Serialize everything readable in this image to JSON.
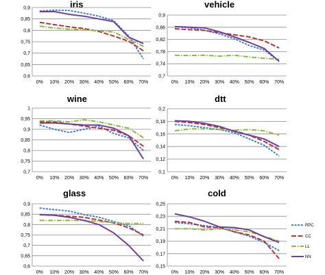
{
  "chart_data": [
    {
      "type": "line",
      "title": "iris",
      "categories": [
        "0%",
        "10%",
        "20%",
        "30%",
        "40%",
        "50%",
        "60%",
        "70%"
      ],
      "yticks": [
        "0,6",
        "0,65",
        "0,7",
        "0,75",
        "0,8",
        "0,85",
        "0,9"
      ],
      "ylim": [
        0.6,
        0.9
      ],
      "grid": true,
      "series": [
        {
          "name": "RPC",
          "values": [
            0.885,
            0.888,
            0.887,
            0.875,
            0.862,
            0.842,
            0.775,
            0.675
          ]
        },
        {
          "name": "CC",
          "values": [
            0.835,
            0.825,
            0.815,
            0.808,
            0.795,
            0.775,
            0.752,
            0.71
          ]
        },
        {
          "name": "LL",
          "values": [
            0.818,
            0.81,
            0.805,
            0.803,
            0.797,
            0.793,
            0.76,
            0.73
          ]
        },
        {
          "name": "NN",
          "values": [
            0.882,
            0.882,
            0.87,
            0.862,
            0.85,
            0.838,
            0.77,
            0.742
          ]
        }
      ]
    },
    {
      "type": "line",
      "title": "vehicle",
      "categories": [
        "0%",
        "10%",
        "20%",
        "30%",
        "40%",
        "50%",
        "60%",
        "70%"
      ],
      "yticks": [
        "0,7",
        "0,74",
        "0,78",
        "0,82",
        "0,86",
        "0,9"
      ],
      "ylim": [
        0.7,
        0.9
      ],
      "grid": true,
      "series": [
        {
          "name": "RPC",
          "values": [
            0.862,
            0.858,
            0.85,
            0.838,
            0.822,
            0.8,
            0.785,
            0.748
          ]
        },
        {
          "name": "CC",
          "values": [
            0.855,
            0.852,
            0.85,
            0.842,
            0.835,
            0.828,
            0.815,
            0.792
          ]
        },
        {
          "name": "LL",
          "values": [
            0.768,
            0.767,
            0.768,
            0.765,
            0.768,
            0.762,
            0.758,
            0.755
          ]
        },
        {
          "name": "NN",
          "values": [
            0.862,
            0.86,
            0.858,
            0.845,
            0.828,
            0.81,
            0.79,
            0.748
          ]
        }
      ]
    },
    {
      "type": "line",
      "title": "wine",
      "categories": [
        "0%",
        "10%",
        "20%",
        "30%",
        "40%",
        "50%",
        "60%",
        "70%"
      ],
      "yticks": [
        "0,7",
        "0,75",
        "0,8",
        "0,85",
        "0,9",
        "0,95",
        "1"
      ],
      "ylim": [
        0.7,
        1.0
      ],
      "grid": true,
      "series": [
        {
          "name": "RPC",
          "values": [
            0.92,
            0.9,
            0.885,
            0.9,
            0.915,
            0.88,
            0.86,
            0.8
          ]
        },
        {
          "name": "CC",
          "values": [
            0.935,
            0.935,
            0.925,
            0.915,
            0.905,
            0.895,
            0.87,
            0.82
          ]
        },
        {
          "name": "LL",
          "values": [
            0.94,
            0.94,
            0.935,
            0.945,
            0.935,
            0.92,
            0.905,
            0.86
          ]
        },
        {
          "name": "NN",
          "values": [
            0.93,
            0.93,
            0.925,
            0.92,
            0.92,
            0.905,
            0.87,
            0.76
          ]
        }
      ]
    },
    {
      "type": "line",
      "title": "dtt",
      "categories": [
        "0%",
        "10%",
        "20%",
        "30%",
        "40%",
        "50%",
        "60%",
        "70%"
      ],
      "yticks": [
        "0,1",
        "0,12",
        "0,14",
        "0,16",
        "0,18",
        "0,2"
      ],
      "ylim": [
        0.1,
        0.2
      ],
      "grid": true,
      "series": [
        {
          "name": "RPC",
          "values": [
            0.175,
            0.173,
            0.17,
            0.167,
            0.162,
            0.152,
            0.142,
            0.125
          ]
        },
        {
          "name": "CC",
          "values": [
            0.18,
            0.178,
            0.175,
            0.17,
            0.165,
            0.158,
            0.148,
            0.135
          ]
        },
        {
          "name": "LL",
          "values": [
            0.165,
            0.168,
            0.168,
            0.167,
            0.166,
            0.167,
            0.165,
            0.158
          ]
        },
        {
          "name": "NN",
          "values": [
            0.181,
            0.18,
            0.177,
            0.172,
            0.164,
            0.158,
            0.152,
            0.14
          ]
        }
      ]
    },
    {
      "type": "line",
      "title": "glass",
      "categories": [
        "0%",
        "10%",
        "20%",
        "30%",
        "40%",
        "50%",
        "60%",
        "70%"
      ],
      "yticks": [
        "0,6",
        "0,65",
        "0,7",
        "0,75",
        "0,8",
        "0,85",
        "0,9"
      ],
      "ylim": [
        0.6,
        0.9
      ],
      "grid": true,
      "series": [
        {
          "name": "RPC",
          "values": [
            0.88,
            0.872,
            0.865,
            0.848,
            0.835,
            0.815,
            0.795,
            0.745
          ]
        },
        {
          "name": "CC",
          "values": [
            0.848,
            0.845,
            0.84,
            0.835,
            0.822,
            0.808,
            0.785,
            0.75
          ]
        },
        {
          "name": "LL",
          "values": [
            0.82,
            0.82,
            0.82,
            0.82,
            0.815,
            0.81,
            0.805,
            0.805
          ]
        },
        {
          "name": "NN",
          "values": [
            0.848,
            0.845,
            0.835,
            0.82,
            0.8,
            0.76,
            0.7,
            0.625
          ]
        }
      ]
    },
    {
      "type": "line",
      "title": "cold",
      "categories": [
        "0%",
        "10%",
        "20%",
        "30%",
        "40%",
        "50%",
        "60%",
        "70%"
      ],
      "yticks": [
        "0,15",
        "0,17",
        "0,19",
        "0,21",
        "0,23",
        "0,25"
      ],
      "ylim": [
        0.15,
        0.25
      ],
      "grid": true,
      "legend": "right",
      "series": [
        {
          "name": "RPC",
          "values": [
            0.22,
            0.218,
            0.215,
            0.212,
            0.205,
            0.198,
            0.188,
            0.175
          ]
        },
        {
          "name": "CC",
          "values": [
            0.222,
            0.22,
            0.213,
            0.212,
            0.205,
            0.2,
            0.19,
            0.162
          ]
        },
        {
          "name": "LL",
          "values": [
            0.21,
            0.21,
            0.208,
            0.21,
            0.208,
            0.205,
            0.198,
            0.19
          ]
        },
        {
          "name": "NN",
          "values": [
            0.234,
            0.229,
            0.222,
            0.213,
            0.212,
            0.208,
            0.197,
            0.188
          ]
        }
      ]
    }
  ],
  "legend": {
    "items": [
      {
        "name": "RPC",
        "color": "#3c7fd2",
        "dash": "3,1.6"
      },
      {
        "name": "CC",
        "color": "#b83234",
        "dash": "7,2.5"
      },
      {
        "name": "LL",
        "color": "#8cb83c",
        "dash": "7,2,1.5,2"
      },
      {
        "name": "NN",
        "color": "#6f3fa0",
        "dash": ""
      }
    ]
  }
}
